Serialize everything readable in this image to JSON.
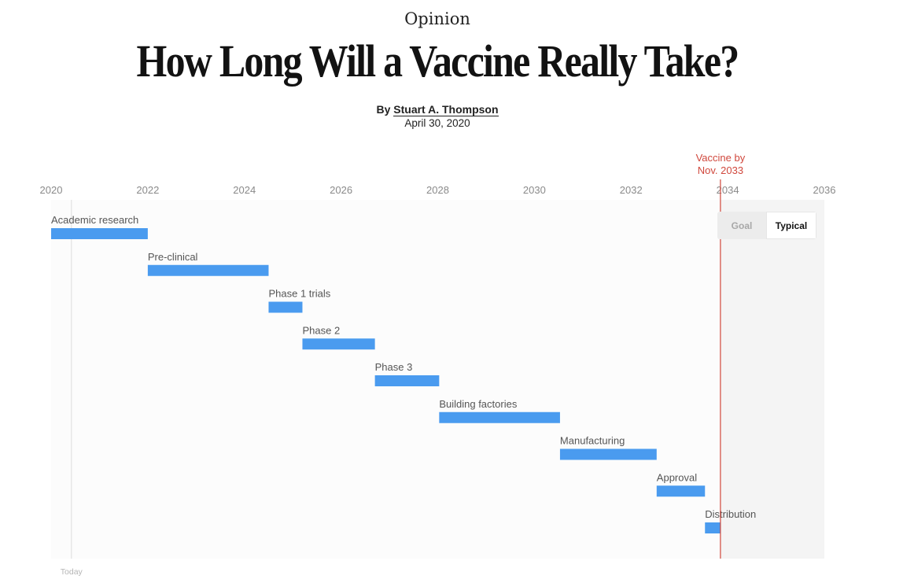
{
  "header": {
    "kicker": "Opinion",
    "headline": "How Long Will a Vaccine Really Take?",
    "byline_prefix": "By",
    "author": "Stuart A. Thompson",
    "date": "April 30, 2020"
  },
  "toggle": {
    "goal_label": "Goal",
    "typical_label": "Typical",
    "selected": "Typical"
  },
  "colors": {
    "bar": "#4a9bef",
    "target": "#d0473c",
    "today_line": "#dddddd",
    "plot_bg": "#fcfcfc",
    "shaded_bg": "#f4f4f4"
  },
  "chart_data": {
    "type": "gantt",
    "title": "",
    "xlabel": "",
    "ylabel": "",
    "xlim": [
      2020,
      2036
    ],
    "xticks": [
      2020,
      2022,
      2024,
      2026,
      2028,
      2030,
      2032,
      2034,
      2036
    ],
    "today": {
      "label": "Today",
      "x": 2020.42
    },
    "target": {
      "label_line1": "Vaccine by",
      "label_line2": "Nov. 2033",
      "x": 2033.85
    },
    "tasks": [
      {
        "label": "Academic research",
        "start": 2020.0,
        "end": 2022.0
      },
      {
        "label": "Pre-clinical",
        "start": 2022.0,
        "end": 2024.5
      },
      {
        "label": "Phase 1 trials",
        "start": 2024.5,
        "end": 2025.2
      },
      {
        "label": "Phase 2",
        "start": 2025.2,
        "end": 2026.7
      },
      {
        "label": "Phase 3",
        "start": 2026.7,
        "end": 2028.03
      },
      {
        "label": "Building factories",
        "start": 2028.03,
        "end": 2030.53
      },
      {
        "label": "Manufacturing",
        "start": 2030.53,
        "end": 2032.53
      },
      {
        "label": "Approval",
        "start": 2032.53,
        "end": 2033.53
      },
      {
        "label": "Distribution",
        "start": 2033.53,
        "end": 2033.85
      }
    ]
  }
}
